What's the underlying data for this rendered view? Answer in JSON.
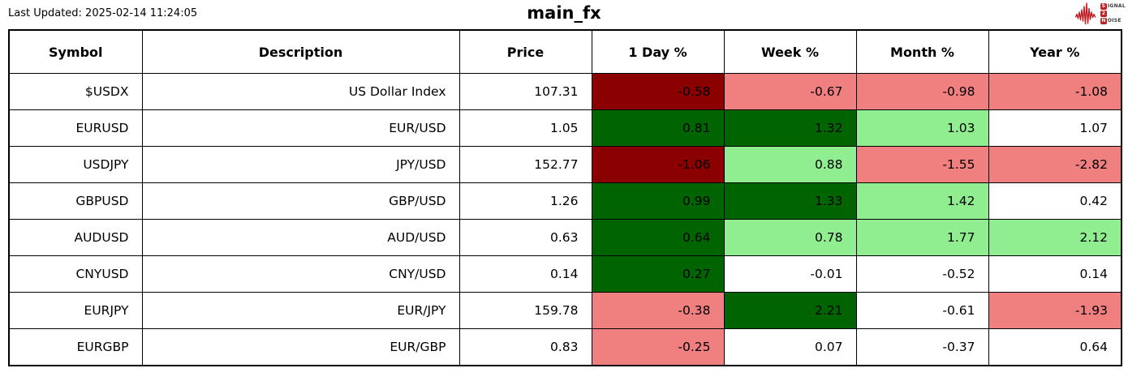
{
  "header": {
    "last_updated": "Last Updated: 2025-02-14 11:24:05"
  },
  "logo": {
    "word1_initial": "S",
    "word1_rest": "IGNAL",
    "word2": "2",
    "word3_initial": "N",
    "word3_rest": "OISE",
    "red": "#bf2026"
  },
  "palette": {
    "dark-red": "#8b0000",
    "light-red": "#f08080",
    "dark-green": "#006400",
    "light-green": "#90ee90",
    "white": "#ffffff"
  },
  "chart_data": {
    "type": "table",
    "title": "main_fx",
    "columns": [
      "Symbol",
      "Description",
      "Price",
      "1 Day %",
      "Week %",
      "Month %",
      "Year %"
    ],
    "rows": [
      {
        "cells": [
          "$USDX",
          "US Dollar Index",
          "107.31",
          "-0.58",
          "-0.67",
          "-0.98",
          "-1.08"
        ],
        "bg": [
          "white",
          "white",
          "white",
          "dark-red",
          "light-red",
          "light-red",
          "light-red"
        ]
      },
      {
        "cells": [
          "EURUSD",
          "EUR/USD",
          "1.05",
          "0.81",
          "1.32",
          "1.03",
          "1.07"
        ],
        "bg": [
          "white",
          "white",
          "white",
          "dark-green",
          "dark-green",
          "light-green",
          "white"
        ]
      },
      {
        "cells": [
          "USDJPY",
          "JPY/USD",
          "152.77",
          "-1.06",
          "0.88",
          "-1.55",
          "-2.82"
        ],
        "bg": [
          "white",
          "white",
          "white",
          "dark-red",
          "light-green",
          "light-red",
          "light-red"
        ]
      },
      {
        "cells": [
          "GBPUSD",
          "GBP/USD",
          "1.26",
          "0.99",
          "1.33",
          "1.42",
          "0.42"
        ],
        "bg": [
          "white",
          "white",
          "white",
          "dark-green",
          "dark-green",
          "light-green",
          "white"
        ]
      },
      {
        "cells": [
          "AUDUSD",
          "AUD/USD",
          "0.63",
          "0.64",
          "0.78",
          "1.77",
          "2.12"
        ],
        "bg": [
          "white",
          "white",
          "white",
          "dark-green",
          "light-green",
          "light-green",
          "light-green"
        ]
      },
      {
        "cells": [
          "CNYUSD",
          "CNY/USD",
          "0.14",
          "0.27",
          "-0.01",
          "-0.52",
          "0.14"
        ],
        "bg": [
          "white",
          "white",
          "white",
          "dark-green",
          "white",
          "white",
          "white"
        ]
      },
      {
        "cells": [
          "EURJPY",
          "EUR/JPY",
          "159.78",
          "-0.38",
          "2.21",
          "-0.61",
          "-1.93"
        ],
        "bg": [
          "white",
          "white",
          "white",
          "light-red",
          "dark-green",
          "white",
          "light-red"
        ]
      },
      {
        "cells": [
          "EURGBP",
          "EUR/GBP",
          "0.83",
          "-0.25",
          "0.07",
          "-0.37",
          "0.64"
        ],
        "bg": [
          "white",
          "white",
          "white",
          "light-red",
          "white",
          "white",
          "white"
        ]
      }
    ]
  }
}
